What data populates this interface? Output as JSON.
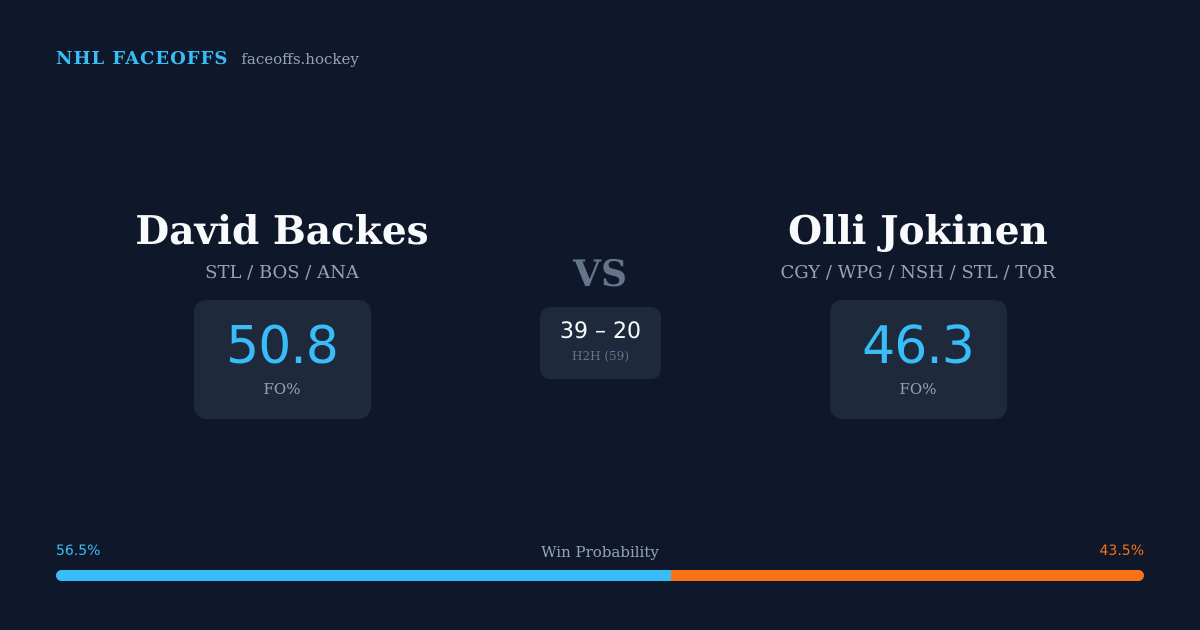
{
  "brand": {
    "name": "NHL FACEOFFS",
    "site": "faceoffs.hockey"
  },
  "colors": {
    "accent_blue": "#38bdf8",
    "accent_orange": "#f97316",
    "background": "#0f172a",
    "card": "#1e293b"
  },
  "player_left": {
    "name": "David Backes",
    "teams": "STL / BOS / ANA",
    "fo_value": "50.8",
    "fo_label": "FO%"
  },
  "player_right": {
    "name": "Olli Jokinen",
    "teams": "CGY / WPG / NSH / STL / TOR",
    "fo_value": "46.3",
    "fo_label": "FO%"
  },
  "versus": {
    "label": "VS",
    "h2h_score": "39 – 20",
    "h2h_label": "H2H (59)"
  },
  "win_probability": {
    "title": "Win Probability",
    "left_label": "56.5%",
    "right_label": "43.5%",
    "left_value": 56.5,
    "right_value": 43.5
  }
}
